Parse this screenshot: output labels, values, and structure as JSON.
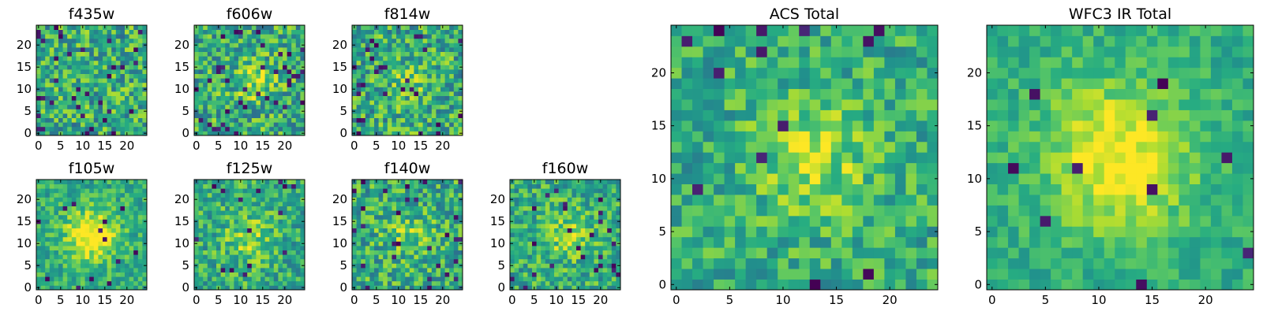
{
  "chart_data": [
    {
      "type": "heatmap",
      "title": "f435w",
      "grid_size": 25,
      "colormap": "viridis",
      "xticks": [
        "0",
        "5",
        "10",
        "15",
        "20"
      ],
      "yticks": [
        "0",
        "5",
        "10",
        "15",
        "20"
      ],
      "xlim": [
        0,
        25
      ],
      "ylim": [
        0,
        25
      ],
      "seed": 11,
      "noise": 0.55,
      "hotspot": null,
      "dark_fraction": 0.05
    },
    {
      "type": "heatmap",
      "title": "f606w",
      "grid_size": 25,
      "colormap": "viridis",
      "xticks": [
        "0",
        "5",
        "10",
        "15",
        "20"
      ],
      "yticks": [
        "0",
        "5",
        "10",
        "15",
        "20"
      ],
      "xlim": [
        0,
        25
      ],
      "ylim": [
        0,
        25
      ],
      "seed": 23,
      "noise": 0.55,
      "hotspot": [
        13,
        12,
        3.0,
        0.25
      ],
      "dark_fraction": 0.05
    },
    {
      "type": "heatmap",
      "title": "f814w",
      "grid_size": 25,
      "colormap": "viridis",
      "xticks": [
        "0",
        "5",
        "10",
        "15",
        "20"
      ],
      "yticks": [
        "0",
        "5",
        "10",
        "15",
        "20"
      ],
      "xlim": [
        0,
        25
      ],
      "ylim": [
        0,
        25
      ],
      "seed": 37,
      "noise": 0.55,
      "hotspot": [
        12,
        12,
        3.0,
        0.15
      ],
      "dark_fraction": 0.05
    },
    {
      "type": "heatmap",
      "title": "f105w",
      "grid_size": 25,
      "colormap": "viridis",
      "xticks": [
        "0",
        "5",
        "10",
        "15",
        "20"
      ],
      "yticks": [
        "0",
        "5",
        "10",
        "15",
        "20"
      ],
      "xlim": [
        0,
        25
      ],
      "ylim": [
        0,
        25
      ],
      "seed": 41,
      "noise": 0.35,
      "hotspot": [
        12,
        12,
        4.0,
        0.45
      ],
      "dark_fraction": 0.02
    },
    {
      "type": "heatmap",
      "title": "f125w",
      "grid_size": 25,
      "colormap": "viridis",
      "xticks": [
        "0",
        "5",
        "10",
        "15",
        "20"
      ],
      "yticks": [
        "0",
        "5",
        "10",
        "15",
        "20"
      ],
      "xlim": [
        0,
        25
      ],
      "ylim": [
        0,
        25
      ],
      "seed": 53,
      "noise": 0.45,
      "hotspot": [
        12,
        11,
        4.0,
        0.2
      ],
      "dark_fraction": 0.03
    },
    {
      "type": "heatmap",
      "title": "f140w",
      "grid_size": 25,
      "colormap": "viridis",
      "xticks": [
        "0",
        "5",
        "10",
        "15",
        "20"
      ],
      "yticks": [
        "0",
        "5",
        "10",
        "15",
        "20"
      ],
      "xlim": [
        0,
        25
      ],
      "ylim": [
        0,
        25
      ],
      "seed": 67,
      "noise": 0.5,
      "hotspot": [
        12,
        12,
        4.0,
        0.15
      ],
      "dark_fraction": 0.04
    },
    {
      "type": "heatmap",
      "title": "f160w",
      "grid_size": 25,
      "colormap": "viridis",
      "xticks": [
        "0",
        "5",
        "10",
        "15",
        "20"
      ],
      "yticks": [
        "0",
        "5",
        "10",
        "15",
        "20"
      ],
      "xlim": [
        0,
        25
      ],
      "ylim": [
        0,
        25
      ],
      "seed": 79,
      "noise": 0.45,
      "hotspot": [
        12,
        12,
        4.0,
        0.2
      ],
      "dark_fraction": 0.04
    },
    {
      "type": "heatmap",
      "title": "ACS Total",
      "grid_size": 25,
      "colormap": "viridis",
      "xticks": [
        "0",
        "5",
        "10",
        "15",
        "20"
      ],
      "yticks": [
        "0",
        "5",
        "10",
        "15",
        "20"
      ],
      "xlim": [
        0,
        25
      ],
      "ylim": [
        0,
        25
      ],
      "seed": 97,
      "noise": 0.4,
      "hotspot": [
        13,
        12,
        4.0,
        0.25
      ],
      "dark_fraction": 0.03
    },
    {
      "type": "heatmap",
      "title": "WFC3 IR Total",
      "grid_size": 25,
      "colormap": "viridis",
      "xticks": [
        "0",
        "5",
        "10",
        "15",
        "20"
      ],
      "yticks": [
        "0",
        "5",
        "10",
        "15",
        "20"
      ],
      "xlim": [
        0,
        25
      ],
      "ylim": [
        0,
        25
      ],
      "seed": 131,
      "noise": 0.25,
      "hotspot": [
        12,
        12,
        5.0,
        0.4
      ],
      "dark_fraction": 0.02
    }
  ]
}
